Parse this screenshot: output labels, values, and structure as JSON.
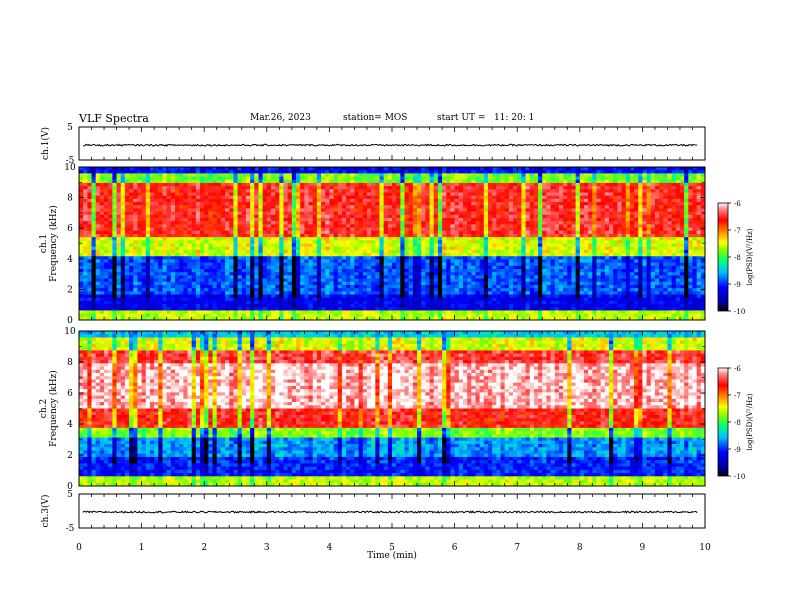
{
  "header": {
    "title": "VLF Spectra",
    "date": "Mar.26, 2023",
    "station": "station= MOS",
    "start_ut": "start UT =   11: 20: 1"
  },
  "chart_data": [
    {
      "type": "line",
      "panel": "ch1-waveform",
      "ylabel": "ch.1(V)",
      "ylim": [
        -5,
        5
      ],
      "yticks": [
        "5",
        "-5"
      ],
      "xlim": [
        0,
        10
      ],
      "series": [
        {
          "values_note_free": true,
          "level": -0.5
        }
      ]
    },
    {
      "type": "heatmap",
      "panel": "ch1-spectrogram",
      "ylabel": "ch.1\nFrequency (kHz)",
      "ylabel_line1": "ch.1",
      "ylabel_line2": "Frequency (kHz)",
      "ylim": [
        0,
        10
      ],
      "yticks": [
        "0",
        "2",
        "4",
        "6",
        "8",
        "10"
      ],
      "xlim": [
        0,
        10
      ],
      "colorbar": {
        "label": "log(PSD)(V²/Hz)",
        "range": [
          -10,
          -6
        ],
        "ticks": [
          "-6",
          "-7",
          "-8",
          "-9",
          "-10"
        ]
      }
    },
    {
      "type": "heatmap",
      "panel": "ch2-spectrogram",
      "ylabel_line1": "ch.2",
      "ylabel_line2": "Frequency (kHz)",
      "ylim": [
        0,
        10
      ],
      "yticks": [
        "0",
        "2",
        "4",
        "6",
        "8",
        "10"
      ],
      "xlim": [
        0,
        10
      ],
      "colorbar": {
        "label": "log(PSD)(V²/Hz)",
        "range": [
          -10,
          -6
        ],
        "ticks": [
          "-6",
          "-7",
          "-8",
          "-9",
          "-10"
        ]
      }
    },
    {
      "type": "line",
      "panel": "ch3-waveform",
      "ylabel": "ch.3(V)",
      "ylim": [
        -5,
        5
      ],
      "yticks": [
        "5",
        "-5"
      ],
      "xlim": [
        0,
        10
      ],
      "series": [
        {
          "level": -0.3
        }
      ]
    }
  ],
  "x_axis": {
    "label": "Time (min)",
    "ticks": [
      "0",
      "1",
      "2",
      "3",
      "4",
      "5",
      "6",
      "7",
      "8",
      "9",
      "10"
    ]
  },
  "colors": {
    "colormap": [
      "#000080",
      "#0000ff",
      "#0080ff",
      "#00ffff",
      "#00ff80",
      "#80ff00",
      "#ffff00",
      "#ff8000",
      "#ff0000",
      "#ff8080",
      "#ffffff"
    ]
  }
}
